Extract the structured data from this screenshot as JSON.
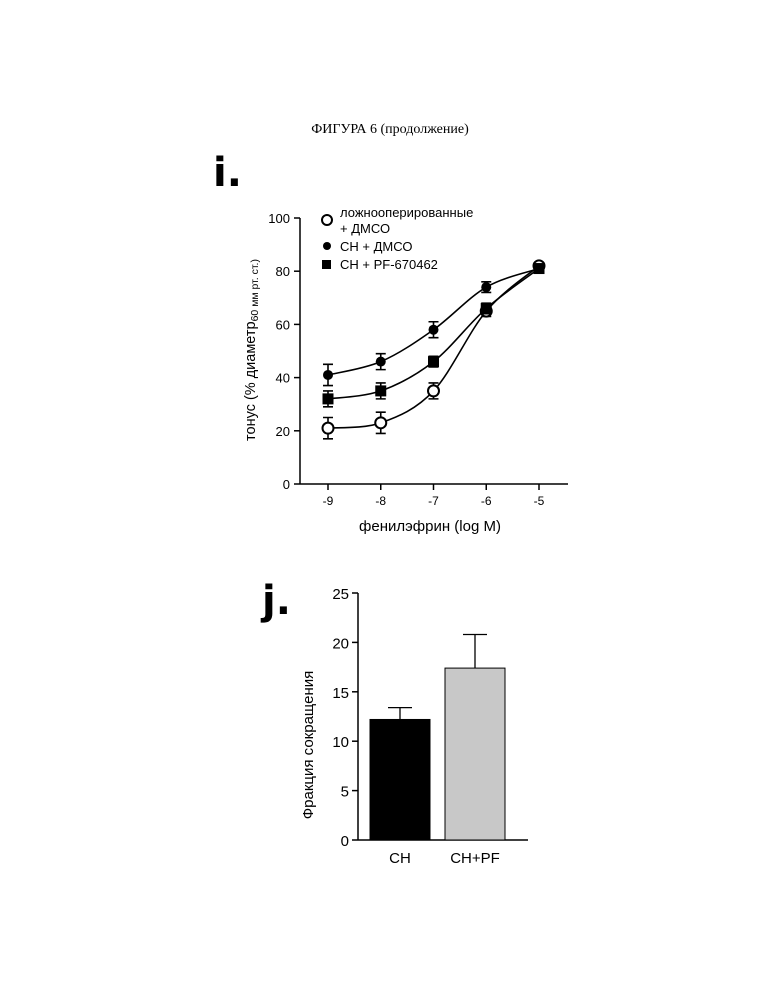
{
  "page": {
    "caption": "ФИГУРА 6 (продолжение)"
  },
  "chart_data": [
    {
      "panel": "i.",
      "type": "line",
      "xlabel": "фенилэфрин (log M)",
      "ylabel_main": "тонус (% диаметр",
      "ylabel_sub": "60 мм рт. ст.)",
      "ylabel_close": "",
      "x": [
        -9,
        -8,
        -7,
        -6,
        -5
      ],
      "x_tick_labels": [
        "-9",
        "-8",
        "-7",
        "-6",
        "-5"
      ],
      "ylim": [
        0,
        100
      ],
      "y_ticks": [
        0,
        20,
        40,
        60,
        80,
        100
      ],
      "y_tick_labels": [
        "0",
        "20",
        "40",
        "60",
        "80",
        "100"
      ],
      "legend_position": "top-left",
      "series": [
        {
          "name_line1": "ложнооперированные",
          "name_line2": "+ ДМСО",
          "marker": "open-circle",
          "values": [
            21,
            23,
            35,
            65,
            82
          ],
          "errors": [
            4,
            4,
            3,
            2,
            1
          ]
        },
        {
          "name_line1": "СН + ДМСО",
          "name_line2": "",
          "marker": "filled-circle",
          "values": [
            41,
            46,
            58,
            74,
            81
          ],
          "errors": [
            4,
            3,
            3,
            2,
            1
          ]
        },
        {
          "name_line1": "СН + PF-670462",
          "name_line2": "",
          "marker": "filled-square",
          "values": [
            32,
            35,
            46,
            66,
            81
          ],
          "errors": [
            3,
            3,
            2,
            2,
            1
          ]
        }
      ]
    },
    {
      "panel": "j.",
      "type": "bar",
      "ylabel": "Фракция сокращения",
      "categories": [
        "СН",
        "СН+PF"
      ],
      "values": [
        12.2,
        17.4
      ],
      "errors": [
        1.2,
        3.4
      ],
      "ylim": [
        0,
        25
      ],
      "y_ticks": [
        0,
        5,
        10,
        15,
        20,
        25
      ],
      "y_tick_labels": [
        "0",
        "5",
        "10",
        "15",
        "20",
        "25"
      ],
      "bar_colors": [
        "#000000",
        "#c8c8c8"
      ]
    }
  ]
}
